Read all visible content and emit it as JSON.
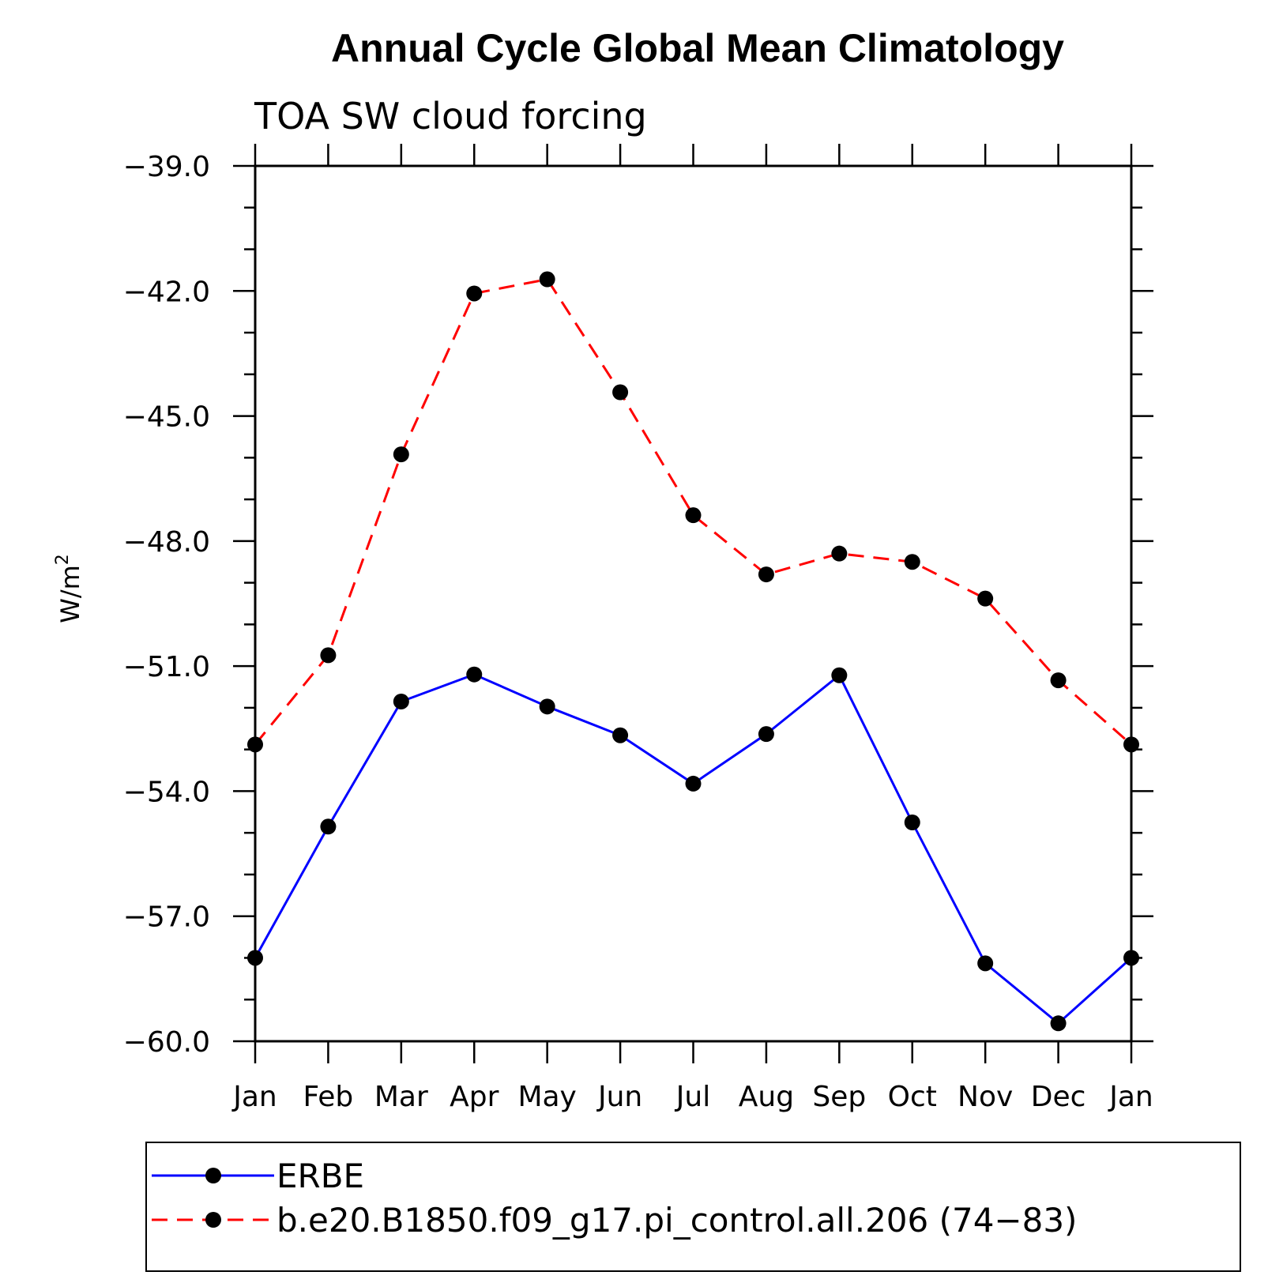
{
  "chart_data": {
    "type": "line",
    "title": "Annual Cycle Global Mean Climatology",
    "subtitle": "TOA SW cloud forcing",
    "ylabel": "W/m",
    "ylabel_superscript": "2",
    "xlabel": "",
    "categories": [
      "Jan",
      "Feb",
      "Mar",
      "Apr",
      "May",
      "Jun",
      "Jul",
      "Aug",
      "Sep",
      "Oct",
      "Nov",
      "Dec",
      "Jan"
    ],
    "ylim": [
      -60.0,
      -39.0
    ],
    "yticks": [
      "-39.0",
      "-42.0",
      "-45.0",
      "-48.0",
      "-51.0",
      "-54.0",
      "-57.0",
      "-60.0"
    ],
    "grid": false,
    "legend_position": "bottom",
    "series": [
      {
        "name": "ERBE",
        "color": "#0000ff",
        "style": "solid",
        "marker": "circle",
        "values": [
          -58.0,
          -54.85,
          -51.85,
          -51.2,
          -51.97,
          -52.66,
          -53.82,
          -52.63,
          -51.22,
          -54.75,
          -58.13,
          -59.57,
          -58.0
        ]
      },
      {
        "name": "b.e20.B1850.f09_g17.pi_control.all.206 (74−83)",
        "color": "#ff0000",
        "style": "dashed",
        "marker": "circle",
        "values": [
          -52.88,
          -50.74,
          -45.92,
          -42.06,
          -41.72,
          -44.43,
          -47.38,
          -48.8,
          -48.3,
          -48.5,
          -49.38,
          -51.34,
          -52.88
        ]
      }
    ]
  }
}
